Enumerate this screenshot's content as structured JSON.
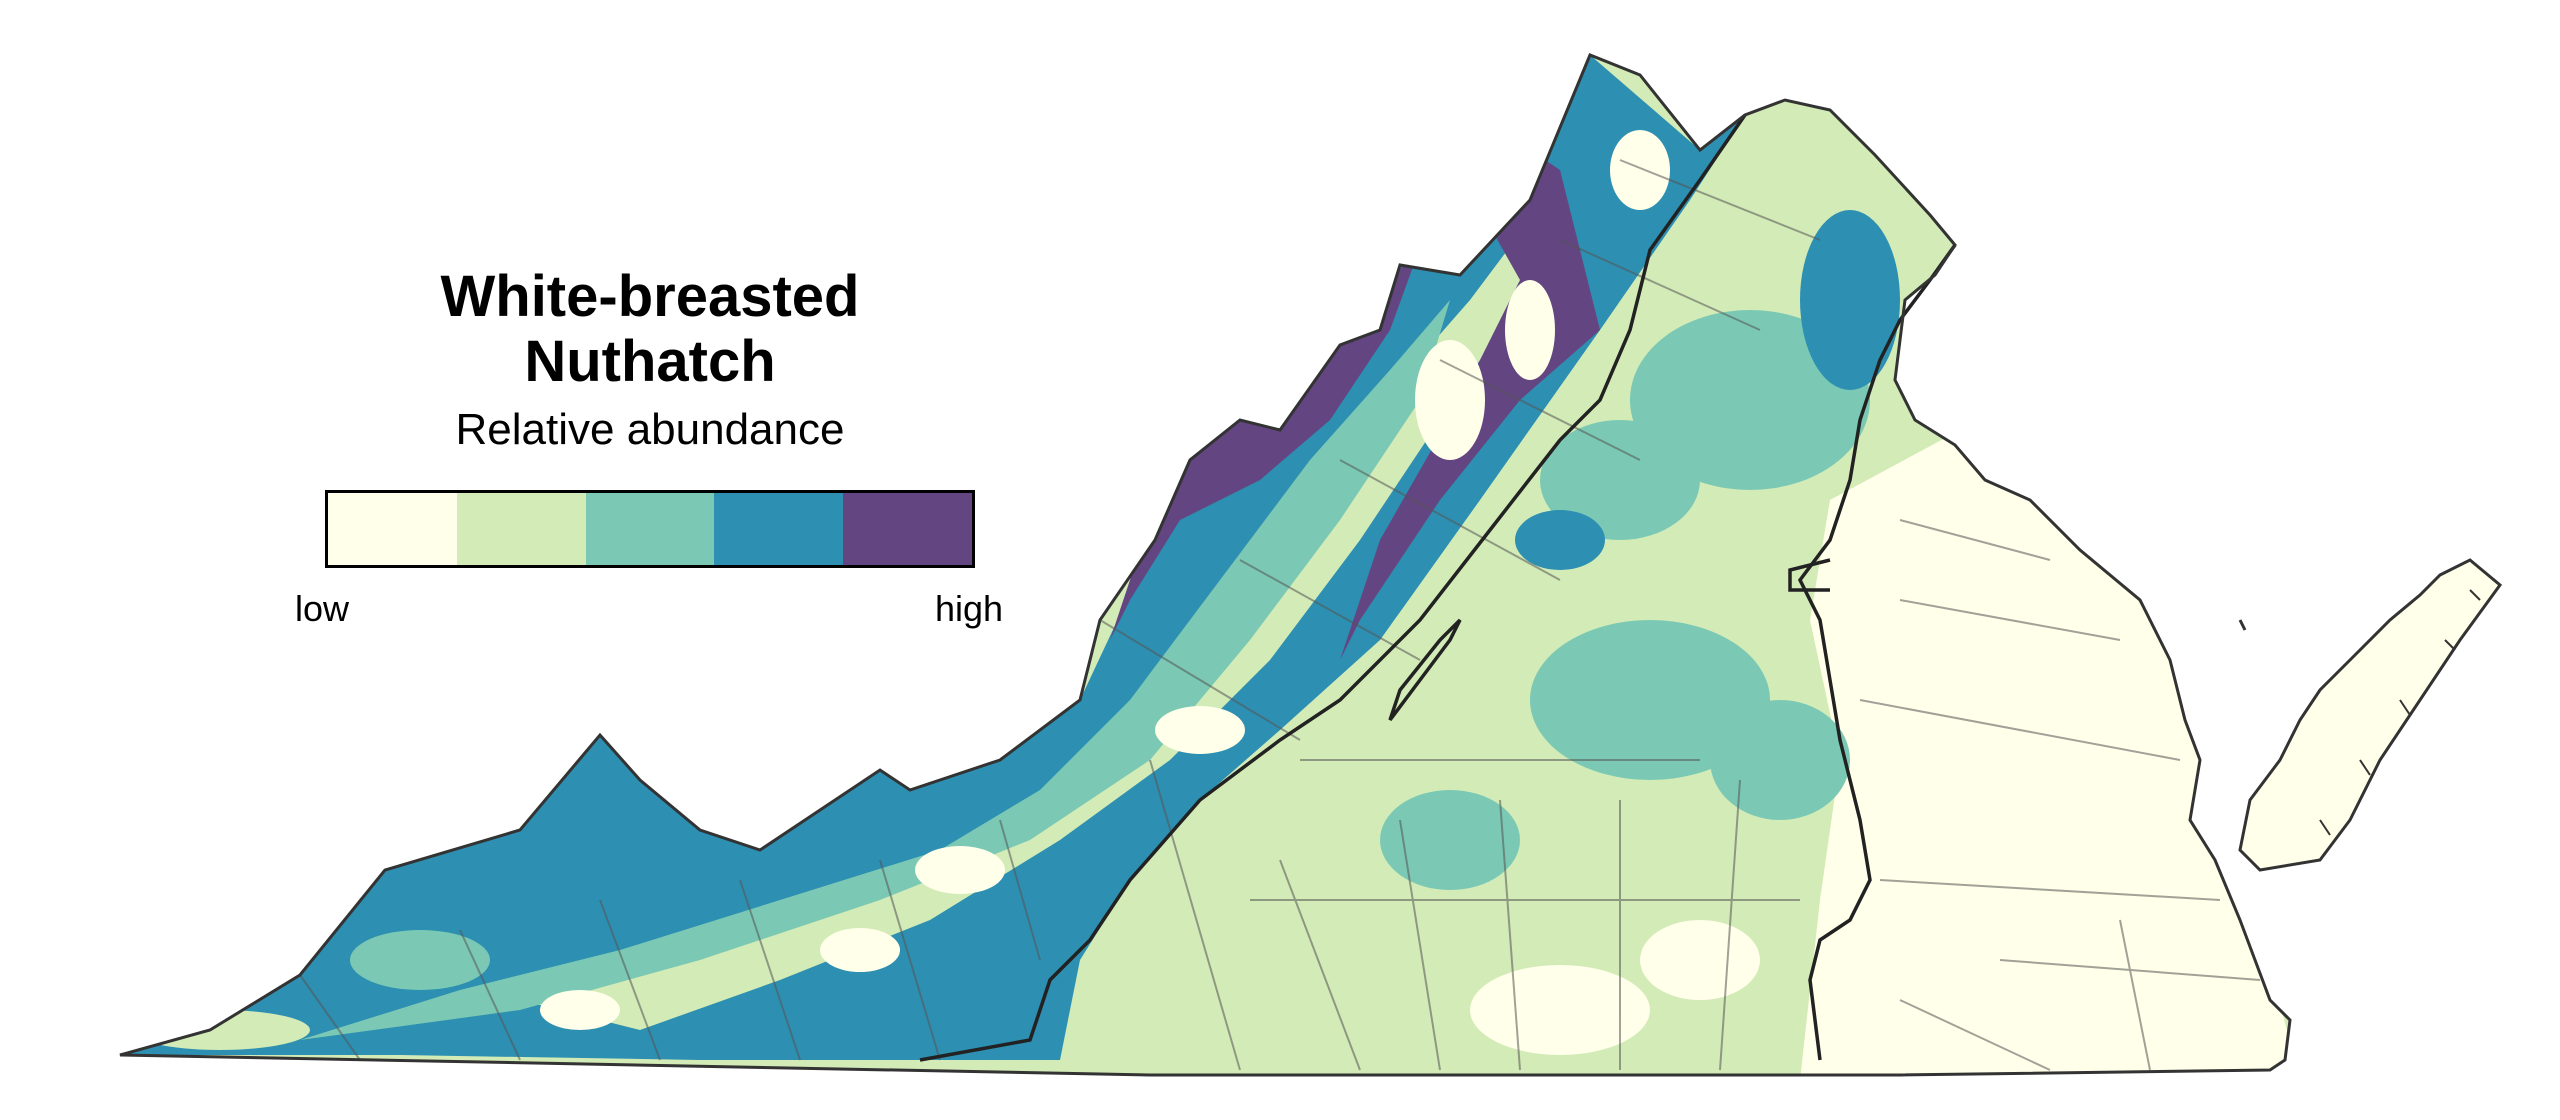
{
  "legend": {
    "title_line1": "White-breasted",
    "title_line2": "Nuthatch",
    "subtitle": "Relative abundance",
    "low_label": "low",
    "high_label": "high",
    "classes": [
      {
        "level": 1,
        "color": "#FFFFEA"
      },
      {
        "level": 2,
        "color": "#D3EBB7"
      },
      {
        "level": 3,
        "color": "#7BC9B4"
      },
      {
        "level": 4,
        "color": "#2D8FB1"
      },
      {
        "level": 5,
        "color": "#634581"
      }
    ]
  },
  "map": {
    "region": "Virginia",
    "background_color": "#ffffff",
    "outline_color": "#333333"
  }
}
